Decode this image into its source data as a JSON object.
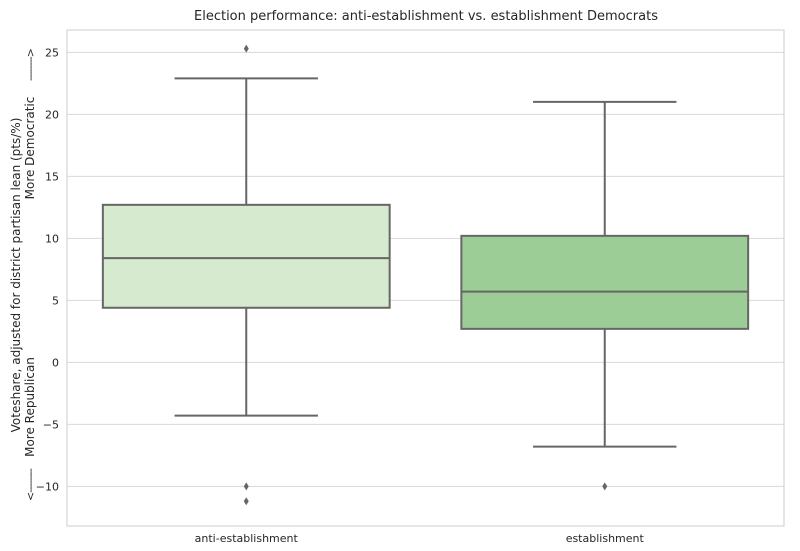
{
  "chart_data": {
    "type": "box",
    "title": "Election performance: anti-establishment vs. establishment Democrats",
    "ylabel_line1": "Voteshare, adjusted for district partisan lean (pts/%)",
    "ylabel_line2_top": "More Democratic",
    "ylabel_line2_bottom": "More Republican",
    "arrow_up": "-------->",
    "arrow_down": "<--------",
    "ylim": [
      -13.2,
      26.8
    ],
    "yticks": [
      -10,
      -5,
      0,
      5,
      10,
      15,
      20,
      25
    ],
    "grid": true,
    "categories": [
      "anti-establishment",
      "establishment"
    ],
    "boxes": [
      {
        "category": "anti-establishment",
        "whisker_low": -4.3,
        "q1": 4.4,
        "median": 8.4,
        "q3": 12.7,
        "whisker_high": 22.9,
        "outliers": [
          25.3,
          -10.0,
          -11.2
        ],
        "color": "#d5eace"
      },
      {
        "category": "establishment",
        "whisker_low": -6.8,
        "q1": 2.7,
        "median": 5.7,
        "q3": 10.2,
        "whisker_high": 21.0,
        "outliers": [
          -10.0
        ],
        "color": "#9dcd97"
      }
    ]
  },
  "colors": {
    "grid": "#d9d9d9",
    "line": "#666666",
    "axis": "#cccccc"
  }
}
